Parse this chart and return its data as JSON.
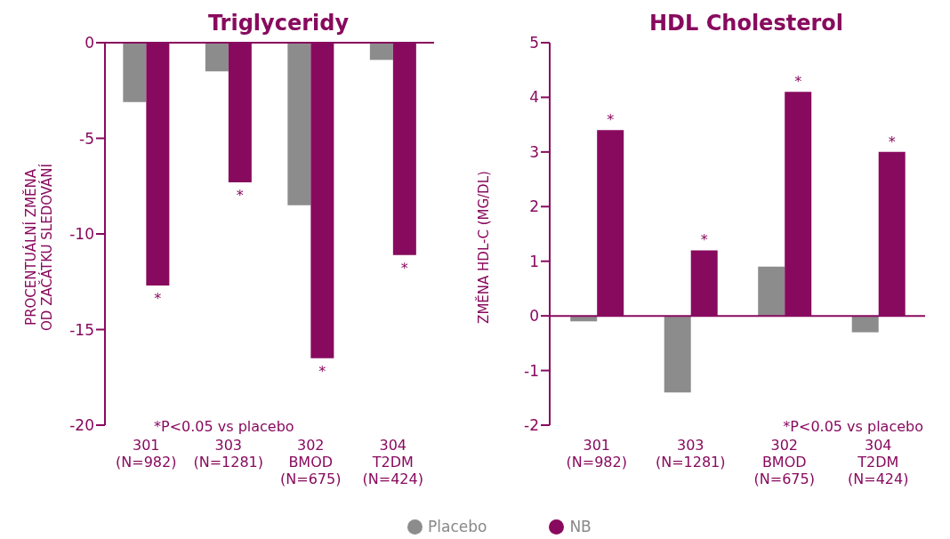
{
  "chart_data": [
    {
      "type": "bar",
      "title": "Triglyceridy",
      "ylabel": "PROCENTUÁLNÍ ZMĚNA\nOD ZAČÁTKU SLEDOVÁNÍ",
      "categories": [
        "301\n(N=982)",
        "303\n(N=1281)",
        "302\nBMOD\n(N=675)",
        "304\nT2DM\n(N=424)"
      ],
      "series": [
        {
          "color": "#8c8c8c",
          "values": [
            -3.1,
            -1.5,
            -8.5,
            -0.9
          ]
        },
        {
          "color": "#880a5e",
          "values": [
            -12.7,
            -7.3,
            -16.5,
            -11.1
          ],
          "value_labels": [
            "*",
            "*",
            "*",
            "*"
          ]
        }
      ],
      "ref_lines": [
        {
          "axis": "y",
          "value": 0,
          "color": "#880a5e"
        }
      ],
      "ylim": [
        -20,
        0
      ],
      "yticks": [
        0,
        -5,
        -10,
        -15,
        -20
      ],
      "grid": false,
      "annotations": [
        "*P<0.05 vs placebo"
      ]
    },
    {
      "type": "bar",
      "title": "HDL Cholesterol",
      "ylabel": "ZMĚNA HDL-C (MG/DL)",
      "categories": [
        "301\n(N=982)",
        "303\n(N=1281)",
        "302\nBMOD\n(N=675)",
        "304\nT2DM\n(N=424)"
      ],
      "series": [
        {
          "name": "Placebo",
          "color": "#8c8c8c",
          "values": [
            -0.1,
            -1.4,
            0.9,
            -0.3
          ]
        },
        {
          "name": "NB",
          "color": "#880a5e",
          "values": [
            3.4,
            1.2,
            4.1,
            3.0
          ],
          "value_labels": [
            "*",
            "*",
            "*",
            "*"
          ]
        }
      ],
      "ref_lines": [
        {
          "axis": "y",
          "value": 0,
          "color": "#880a5e"
        }
      ],
      "ylim": [
        -2,
        5
      ],
      "yticks": [
        -2,
        -1,
        0,
        1,
        2,
        3,
        4,
        5
      ],
      "grid": false,
      "legend": "bottom",
      "annotations": [
        "*P<0.05 vs placebo"
      ]
    }
  ]
}
